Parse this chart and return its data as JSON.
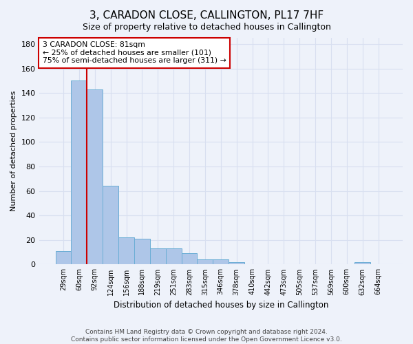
{
  "title": "3, CARADON CLOSE, CALLINGTON, PL17 7HF",
  "subtitle": "Size of property relative to detached houses in Callington",
  "xlabel": "Distribution of detached houses by size in Callington",
  "ylabel": "Number of detached properties",
  "categories": [
    "29sqm",
    "60sqm",
    "92sqm",
    "124sqm",
    "156sqm",
    "188sqm",
    "219sqm",
    "251sqm",
    "283sqm",
    "315sqm",
    "346sqm",
    "378sqm",
    "410sqm",
    "442sqm",
    "473sqm",
    "505sqm",
    "537sqm",
    "569sqm",
    "600sqm",
    "632sqm",
    "664sqm"
  ],
  "values": [
    11,
    150,
    143,
    64,
    22,
    21,
    13,
    13,
    9,
    4,
    4,
    2,
    0,
    0,
    0,
    0,
    0,
    0,
    0,
    2,
    0
  ],
  "bar_color": "#aec6e8",
  "bar_edgecolor": "#6aadd5",
  "annotation_text_line1": "3 CARADON CLOSE: 81sqm",
  "annotation_text_line2": "← 25% of detached houses are smaller (101)",
  "annotation_text_line3": "75% of semi-detached houses are larger (311) →",
  "annotation_box_facecolor": "#ffffff",
  "annotation_box_edgecolor": "#cc0000",
  "vline_color": "#cc0000",
  "vline_x_index": 1.5,
  "background_color": "#eef2fa",
  "grid_color": "#d8dff0",
  "footnote": "Contains HM Land Registry data © Crown copyright and database right 2024.\nContains public sector information licensed under the Open Government Licence v3.0.",
  "ylim": [
    0,
    185
  ],
  "yticks": [
    0,
    20,
    40,
    60,
    80,
    100,
    120,
    140,
    160,
    180
  ],
  "title_fontsize": 11,
  "subtitle_fontsize": 9
}
